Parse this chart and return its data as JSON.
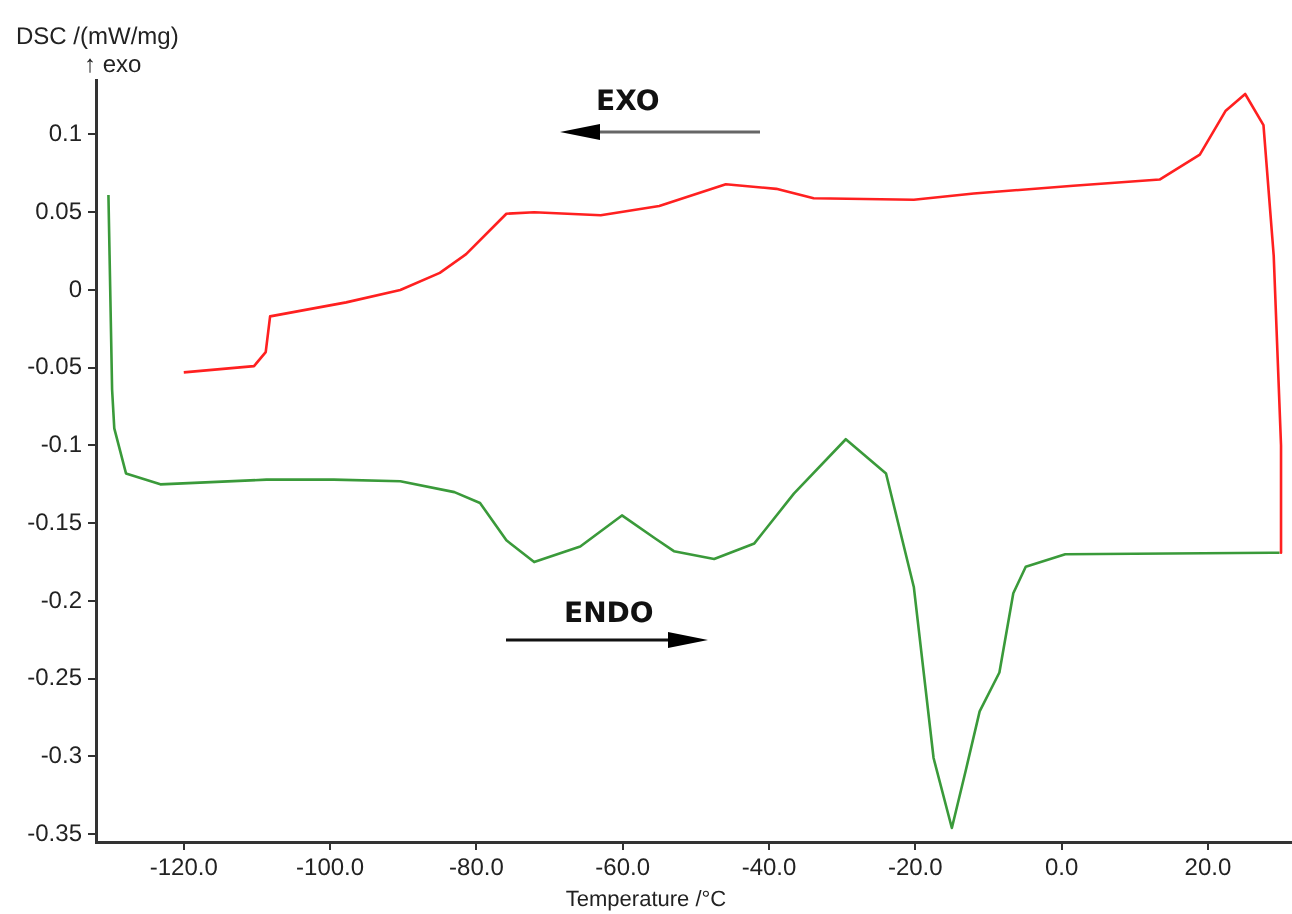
{
  "chart_data": {
    "type": "line",
    "xlabel": "Temperature /°C",
    "ylabel": "DSC /(mW/mg)",
    "annotations": [
      "↑ exo",
      "EXO",
      "ENDO"
    ],
    "xlim": [
      -132,
      31.5
    ],
    "ylim": [
      -0.355,
      0.135
    ],
    "xticks": [
      {
        "value": -120,
        "label": "-120.0"
      },
      {
        "value": -100,
        "label": "-100.0"
      },
      {
        "value": -80,
        "label": "-80.0"
      },
      {
        "value": -60,
        "label": "-60.0"
      },
      {
        "value": -40,
        "label": "-40.0"
      },
      {
        "value": -20,
        "label": "-20.0"
      },
      {
        "value": 0,
        "label": "0.0"
      },
      {
        "value": 20,
        "label": "20.0"
      }
    ],
    "yticks": [
      -0.35,
      -0.3,
      -0.25,
      -0.2,
      -0.15,
      -0.1,
      -0.05,
      0,
      0.05,
      0.1
    ],
    "grid": false,
    "legend": false,
    "marker": "none",
    "line_style": "solid",
    "series": [
      {
        "color": "#ff2020",
        "x": [
          -120,
          -110.4,
          -108.8,
          -108.2,
          -97.8,
          -90.4,
          -85,
          -81.4,
          -75.9,
          -72.1,
          -63,
          -55,
          -45.9,
          -39,
          -33.9,
          -20.2,
          -12,
          1.6,
          13.4,
          18.9,
          22.4,
          25.1,
          27.6,
          29,
          30,
          30
        ],
        "values": [
          -0.053,
          -0.049,
          -0.04,
          -0.017,
          -0.008,
          0.0,
          0.011,
          0.023,
          0.049,
          0.05,
          0.048,
          0.054,
          0.068,
          0.065,
          0.059,
          0.058,
          0.062,
          0.067,
          0.071,
          0.087,
          0.115,
          0.126,
          0.106,
          0.022,
          -0.1,
          -0.169
        ]
      },
      {
        "color": "#3a9a3a",
        "x": [
          -130.3,
          -129.8,
          -129.5,
          -127.9,
          -123.2,
          -108.7,
          -99.5,
          -90.4,
          -83,
          -79.5,
          -75.9,
          -72.1,
          -65.8,
          -60.1,
          -55.5,
          -53,
          -47.5,
          -42,
          -36.6,
          -29.5,
          -24,
          -20.2,
          -17.5,
          -15,
          -13.1,
          -11.2,
          -8.5,
          -6.6,
          -4.9,
          0.5,
          29.8
        ],
        "values": [
          0.061,
          -0.064,
          -0.089,
          -0.118,
          -0.125,
          -0.122,
          -0.122,
          -0.123,
          -0.13,
          -0.137,
          -0.161,
          -0.175,
          -0.165,
          -0.145,
          -0.16,
          -0.168,
          -0.173,
          -0.163,
          -0.131,
          -0.096,
          -0.118,
          -0.191,
          -0.301,
          -0.346,
          -0.309,
          -0.271,
          -0.246,
          -0.195,
          -0.178,
          -0.17,
          -0.169
        ]
      }
    ]
  }
}
